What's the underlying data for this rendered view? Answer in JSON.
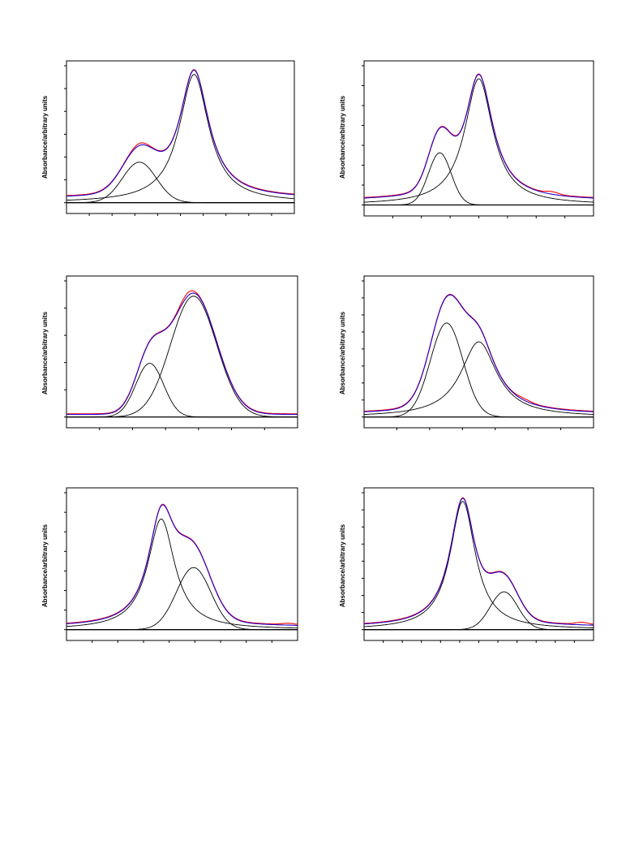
{
  "colors": {
    "measured": "#ff0000",
    "fit": "#2200cc",
    "component": "#000000",
    "axis": "#000000",
    "background": "#ffffff"
  },
  "chart_data": [
    {
      "type": "line",
      "ylabel": "Absorbance/arbitrary units",
      "xlim": [
        0,
        10
      ],
      "ylim": [
        -0.08,
        1.05
      ],
      "x_ticks": 10,
      "y_ticks": 6,
      "baseline": 0.03,
      "components": [
        {
          "center": 3.2,
          "height": 0.3,
          "width": 1.05,
          "shape": "gauss"
        },
        {
          "center": 5.6,
          "height": 0.95,
          "width": 1.0,
          "shape": "lorentz"
        }
      ],
      "measured_noise": [
        {
          "x": 3.2,
          "amp": 0.012
        }
      ]
    },
    {
      "type": "line",
      "ylabel": "Absorbance/arbitrary units",
      "xlim": [
        0,
        10
      ],
      "ylim": [
        -0.08,
        1.05
      ],
      "x_ticks": 8,
      "y_ticks": 7,
      "baseline": 0.03,
      "components": [
        {
          "center": 3.3,
          "height": 0.38,
          "width": 0.7,
          "shape": "gauss"
        },
        {
          "center": 5.0,
          "height": 0.92,
          "width": 0.95,
          "shape": "lorentz"
        }
      ],
      "measured_noise": [
        {
          "x": 8.2,
          "amp": 0.015
        }
      ]
    },
    {
      "type": "line",
      "ylabel": "Absorbance/arbitrary units",
      "xlim": [
        0,
        10
      ],
      "ylim": [
        -0.08,
        1.05
      ],
      "x_ticks": 7,
      "y_ticks": 5,
      "baseline": 0.02,
      "components": [
        {
          "center": 3.6,
          "height": 0.4,
          "width": 0.85,
          "shape": "gauss"
        },
        {
          "center": 5.5,
          "height": 0.9,
          "width": 1.4,
          "shape": "gauss"
        }
      ],
      "measured_noise": [
        {
          "x": 5.2,
          "amp": 0.02
        }
      ]
    },
    {
      "type": "line",
      "ylabel": "Absorbance/arbitrary units",
      "xlim": [
        0,
        10
      ],
      "ylim": [
        -0.08,
        1.05
      ],
      "x_ticks": 7,
      "y_ticks": 8,
      "baseline": 0.02,
      "components": [
        {
          "center": 3.6,
          "height": 0.7,
          "width": 1.0,
          "shape": "gauss"
        },
        {
          "center": 5.0,
          "height": 0.56,
          "width": 1.2,
          "shape": "lorentz"
        }
      ],
      "measured_noise": [
        {
          "x": 7.0,
          "amp": 0.01
        }
      ]
    },
    {
      "type": "line",
      "ylabel": "Absorbance/arbitrary units",
      "xlim": [
        0,
        10
      ],
      "ylim": [
        -0.08,
        1.05
      ],
      "x_ticks": 9,
      "y_ticks": 7,
      "baseline": 0.02,
      "components": [
        {
          "center": 4.1,
          "height": 0.82,
          "width": 0.9,
          "shape": "lorentz"
        },
        {
          "center": 5.5,
          "height": 0.46,
          "width": 1.05,
          "shape": "gauss"
        }
      ],
      "measured_noise": [
        {
          "x": 9.6,
          "amp": 0.01
        }
      ]
    },
    {
      "type": "line",
      "ylabel": "Absorbance/arbitrary units",
      "xlim": [
        0,
        10
      ],
      "ylim": [
        -0.08,
        1.05
      ],
      "x_ticks": 12,
      "y_ticks": 8,
      "baseline": 0.02,
      "components": [
        {
          "center": 4.3,
          "height": 0.95,
          "width": 0.85,
          "shape": "lorentz"
        },
        {
          "center": 6.1,
          "height": 0.28,
          "width": 0.85,
          "shape": "gauss"
        }
      ],
      "measured_noise": [
        {
          "x": 9.5,
          "amp": 0.015
        }
      ]
    }
  ]
}
